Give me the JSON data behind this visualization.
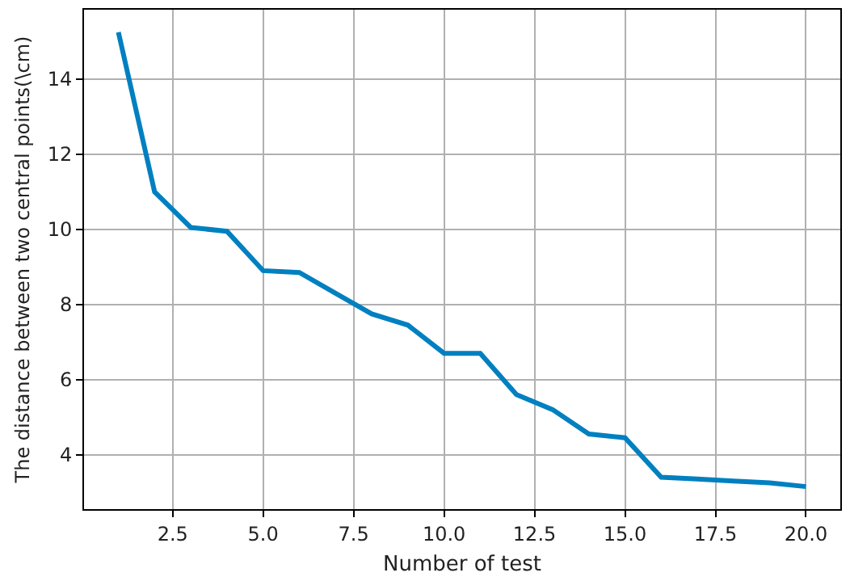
{
  "chart_data": {
    "type": "line",
    "xlabel": "Number of test",
    "ylabel": "The distance between two central points(\\cm)",
    "x": [
      1,
      2,
      3,
      4,
      5,
      6,
      7,
      8,
      9,
      10,
      11,
      12,
      13,
      14,
      15,
      16,
      17,
      18,
      19,
      20
    ],
    "series": [
      {
        "color": "#0080c0",
        "values": [
          15.25,
          11.0,
          10.05,
          9.95,
          8.9,
          8.85,
          8.3,
          7.75,
          7.45,
          6.7,
          6.7,
          5.6,
          5.2,
          4.55,
          4.45,
          3.4,
          3.35,
          3.3,
          3.25,
          3.15
        ]
      }
    ],
    "xlim": [
      0.05,
      20.95
    ],
    "ylim": [
      2.55,
      15.85
    ],
    "xticks": [
      {
        "value": 2.5,
        "label": "2.5"
      },
      {
        "value": 5,
        "label": "5.0"
      },
      {
        "value": 7.5,
        "label": "7.5"
      },
      {
        "value": 10,
        "label": "10.0"
      },
      {
        "value": 12.5,
        "label": "12.5"
      },
      {
        "value": 15,
        "label": "15.0"
      },
      {
        "value": 17.5,
        "label": "17.5"
      },
      {
        "value": 20,
        "label": "20.0"
      }
    ],
    "yticks": [
      4,
      6,
      8,
      10,
      12,
      14
    ],
    "grid": true,
    "marker": "none",
    "line_style": "solid"
  }
}
